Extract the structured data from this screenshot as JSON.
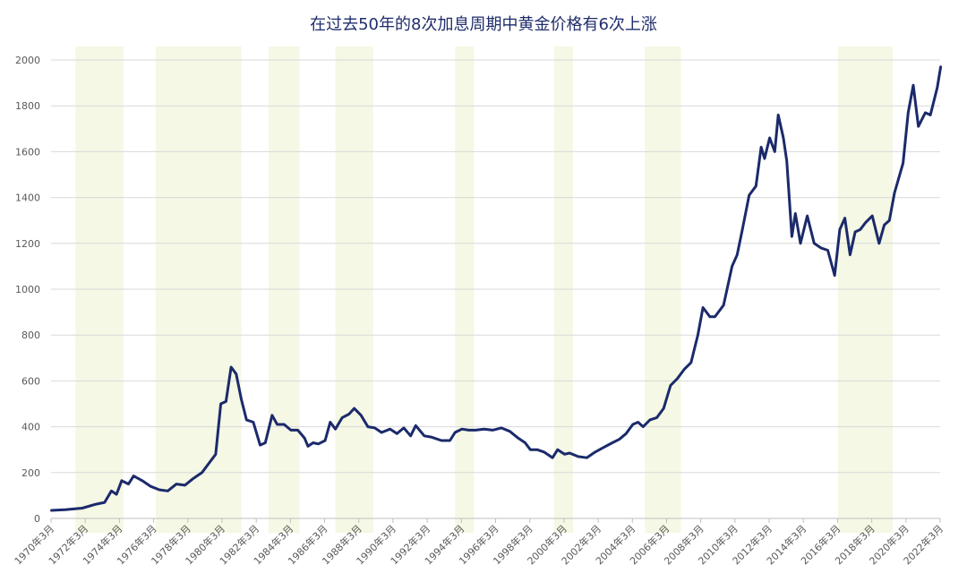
{
  "chart_data": {
    "type": "line",
    "title": "在过去50年的8次加息周期中黄金价格有6次上涨",
    "x": [
      1970.2,
      1971,
      1972,
      1972.8,
      1973.3,
      1973.7,
      1974,
      1974.3,
      1974.7,
      1975,
      1975.5,
      1976,
      1976.5,
      1977,
      1977.5,
      1978,
      1978.5,
      1979,
      1979.3,
      1979.8,
      1980.1,
      1980.4,
      1980.7,
      1981,
      1981.3,
      1981.6,
      1982,
      1982.4,
      1982.7,
      1983.1,
      1983.4,
      1983.8,
      1984.2,
      1984.6,
      1985,
      1985.2,
      1985.5,
      1985.8,
      1986.2,
      1986.5,
      1986.8,
      1987.2,
      1987.6,
      1987.9,
      1988.3,
      1988.7,
      1989.1,
      1989.5,
      1990,
      1990.4,
      1990.8,
      1991.2,
      1991.5,
      1992,
      1992.4,
      1993,
      1993.5,
      1993.8,
      1994.2,
      1994.6,
      1995,
      1995.5,
      1996,
      1996.5,
      1997,
      1997.5,
      1997.9,
      1998.2,
      1998.6,
      1999,
      1999.5,
      1999.8,
      2000.2,
      2000.5,
      2001,
      2001.5,
      2002,
      2002.5,
      2003,
      2003.4,
      2003.8,
      2004.2,
      2004.5,
      2004.8,
      2005.2,
      2005.6,
      2006,
      2006.4,
      2006.8,
      2007.2,
      2007.6,
      2008,
      2008.3,
      2008.7,
      2009,
      2009.5,
      2010,
      2010.3,
      2010.6,
      2011,
      2011.4,
      2011.7,
      2011.9,
      2012.2,
      2012.5,
      2012.7,
      2013,
      2013.2,
      2013.5,
      2013.7,
      2014,
      2014.4,
      2014.8,
      2015.2,
      2015.6,
      2016,
      2016.3,
      2016.6,
      2016.9,
      2017.2,
      2017.5,
      2017.8,
      2018.2,
      2018.6,
      2018.9,
      2019.2,
      2019.5,
      2020,
      2020.3,
      2020.6,
      2020.9,
      2021.3,
      2021.6,
      2022,
      2022.2
    ],
    "series": [
      {
        "name": "黄金价格",
        "color": "#1b2a6b",
        "values": [
          35,
          38,
          45,
          62,
          70,
          120,
          105,
          165,
          150,
          185,
          165,
          140,
          125,
          120,
          150,
          145,
          175,
          200,
          230,
          280,
          500,
          510,
          660,
          630,
          520,
          430,
          420,
          320,
          330,
          450,
          410,
          410,
          385,
          385,
          350,
          315,
          330,
          325,
          340,
          420,
          390,
          440,
          455,
          480,
          450,
          400,
          395,
          375,
          390,
          370,
          395,
          360,
          405,
          360,
          355,
          340,
          340,
          375,
          390,
          385,
          385,
          390,
          385,
          395,
          380,
          350,
          330,
          300,
          300,
          290,
          265,
          300,
          280,
          285,
          270,
          265,
          290,
          310,
          330,
          345,
          370,
          410,
          420,
          400,
          430,
          440,
          480,
          580,
          610,
          650,
          680,
          800,
          920,
          880,
          880,
          930,
          1100,
          1150,
          1260,
          1410,
          1450,
          1620,
          1570,
          1660,
          1600,
          1760,
          1660,
          1560,
          1230,
          1330,
          1200,
          1320,
          1200,
          1180,
          1170,
          1060,
          1260,
          1310,
          1150,
          1250,
          1260,
          1290,
          1320,
          1200,
          1280,
          1300,
          1420,
          1550,
          1770,
          1890,
          1710,
          1770,
          1760,
          1880,
          1970
        ]
      }
    ],
    "hike_periods": [
      [
        1971.6,
        1974.4
      ],
      [
        1976.3,
        1981.3
      ],
      [
        1982.9,
        1984.7
      ],
      [
        1986.8,
        1989.0
      ],
      [
        1993.8,
        1994.9
      ],
      [
        1999.6,
        2000.7
      ],
      [
        2004.9,
        2007.0
      ],
      [
        2016.2,
        2019.4
      ]
    ],
    "hike_color": "#f4f8e4",
    "xlim": [
      1970.17,
      2022.17
    ],
    "xticks": [
      {
        "value": 1970.17,
        "label": "1970年3月"
      },
      {
        "value": 1972.17,
        "label": "1972年3月"
      },
      {
        "value": 1974.17,
        "label": "1974年3月"
      },
      {
        "value": 1976.17,
        "label": "1976年3月"
      },
      {
        "value": 1978.17,
        "label": "1978年3月"
      },
      {
        "value": 1980.17,
        "label": "1980年3月"
      },
      {
        "value": 1982.17,
        "label": "1982年3月"
      },
      {
        "value": 1984.17,
        "label": "1984年3月"
      },
      {
        "value": 1986.17,
        "label": "1986年3月"
      },
      {
        "value": 1988.17,
        "label": "1988年3月"
      },
      {
        "value": 1990.17,
        "label": "1990年3月"
      },
      {
        "value": 1992.17,
        "label": "1992年3月"
      },
      {
        "value": 1994.17,
        "label": "1994年3月"
      },
      {
        "value": 1996.17,
        "label": "1996年3月"
      },
      {
        "value": 1998.17,
        "label": "1998年3月"
      },
      {
        "value": 2000.17,
        "label": "2000年3月"
      },
      {
        "value": 2002.17,
        "label": "2002年3月"
      },
      {
        "value": 2004.17,
        "label": "2004年3月"
      },
      {
        "value": 2006.17,
        "label": "2006年3月"
      },
      {
        "value": 2008.17,
        "label": "2008年3月"
      },
      {
        "value": 2010.17,
        "label": "2010年3月"
      },
      {
        "value": 2012.17,
        "label": "2012年3月"
      },
      {
        "value": 2014.17,
        "label": "2014年3月"
      },
      {
        "value": 2016.17,
        "label": "2016年3月"
      },
      {
        "value": 2018.17,
        "label": "2018年3月"
      },
      {
        "value": 2020.17,
        "label": "2020年3月"
      },
      {
        "value": 2022.17,
        "label": "2022年3月"
      }
    ],
    "ylim": [
      0,
      2000
    ],
    "yticks": [
      0,
      200,
      400,
      600,
      800,
      1000,
      1200,
      1400,
      1600,
      1800,
      2000
    ],
    "grid": true
  }
}
